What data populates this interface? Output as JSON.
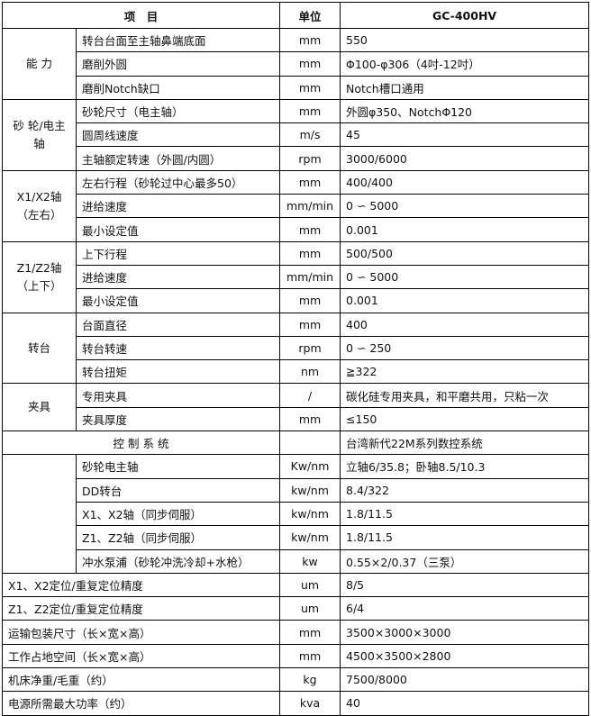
{
  "header": {
    "item": "项　目",
    "unit": "单位",
    "model": "GC-400HV"
  },
  "groups": [
    {
      "name": "能 力",
      "rows": [
        [
          "转台台面至主轴鼻端底面",
          "mm",
          "550"
        ],
        [
          "磨削外圆",
          "mm",
          "Φ100-φ306（4吋-12吋）"
        ],
        [
          "磨削Notch缺口",
          "mm",
          "Notch槽口通用"
        ]
      ]
    },
    {
      "name": "砂 轮/电主轴",
      "rows": [
        [
          "砂轮尺寸（电主轴）",
          "mm",
          "外圆φ350、NotchΦ120"
        ],
        [
          "圆周线速度",
          "m/s",
          "45"
        ],
        [
          "主轴额定转速（外圆/内圆）",
          "rpm",
          "3000/6000"
        ]
      ]
    },
    {
      "name": "X1/X2轴（左右）",
      "rows": [
        [
          "左右行程（砂轮过中心最多50）",
          "mm",
          "400/400"
        ],
        [
          "进给速度",
          "mm/min",
          "0 ∽ 5000"
        ],
        [
          "最小设定值",
          "mm",
          "0.001"
        ]
      ]
    },
    {
      "name": "Z1/Z2轴（上下）",
      "rows": [
        [
          "上下行程",
          "mm",
          "500/500"
        ],
        [
          "进给速度",
          "mm/min",
          "0 ∽ 5000"
        ],
        [
          "最小设定值",
          "mm",
          "0.001"
        ]
      ]
    },
    {
      "name": "转台",
      "rows": [
        [
          "台面直径",
          "mm",
          "400"
        ],
        [
          "转台转速",
          "rpm",
          "0 ∽ 250"
        ],
        [
          "转台扭矩",
          "nm",
          "≧322"
        ]
      ]
    },
    {
      "name": "夹具",
      "rows": [
        [
          "专用夹具",
          "/",
          "碳化硅专用夹具，和平磨共用，只粘一次"
        ],
        [
          "夹具厚度",
          "mm",
          "≤150"
        ]
      ]
    }
  ],
  "control": {
    "label": "控 制 系 统",
    "unit": "",
    "value": "台湾新代22M系列数控系统"
  },
  "power": {
    "name": "",
    "rows": [
      [
        "砂轮电主轴",
        "Kw/nm",
        "立轴6/35.8；卧轴8.5/10.3"
      ],
      [
        "DD转台",
        "kw/nm",
        "8.4/322"
      ],
      [
        "X1、X2轴（同步伺服）",
        "kw/nm",
        "1.8/11.5"
      ],
      [
        "Z1、Z2轴（同步伺服）",
        "kw/nm",
        "1.8/11.5"
      ],
      [
        "冲水泵浦（砂轮冲洗冷却+水枪）",
        "kw",
        "0.55×2/0.37（三泵）"
      ]
    ]
  },
  "misc": [
    [
      "X1、X2定位/重复定位精度",
      "um",
      "8/5"
    ],
    [
      "Z1、Z2定位/重复定位精度",
      "um",
      "6/4"
    ],
    [
      "运输包装尺寸（长×宽×高）",
      "mm",
      "3500×3000×3000"
    ],
    [
      "工作占地空间（长×宽×高）",
      "mm",
      "4500×3500×2800"
    ],
    [
      "机床净重/毛重（约）",
      "kg",
      "7500/8000"
    ],
    [
      "电源所需最大功率（约）",
      "kva",
      "40"
    ]
  ]
}
